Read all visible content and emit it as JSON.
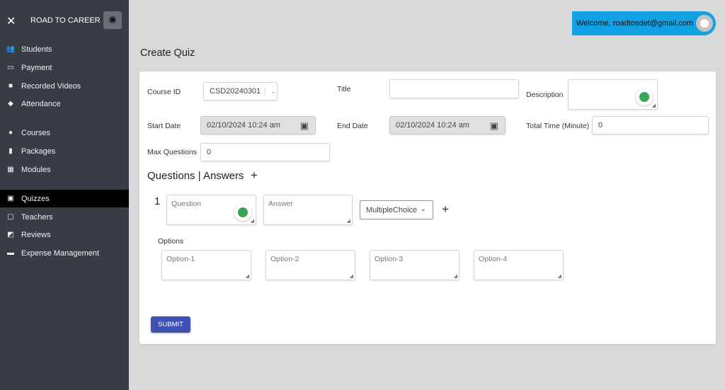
{
  "sidebar": {
    "title": "ROAD TO CAREER",
    "items": [
      {
        "label": "Students",
        "icon": "people-icon"
      },
      {
        "label": "Payment",
        "icon": "credit-card-icon"
      },
      {
        "label": "Recorded Videos",
        "icon": "video-camera-icon"
      },
      {
        "label": "Attendance",
        "icon": "graduation-cap-icon"
      },
      {
        "label": "Courses",
        "icon": "courses-icon"
      },
      {
        "label": "Packages",
        "icon": "shopping-bag-icon"
      },
      {
        "label": "Modules",
        "icon": "grid-icon"
      },
      {
        "label": "Quizzes",
        "icon": "quiz-icon",
        "active": true
      },
      {
        "label": "Teachers",
        "icon": "teacher-icon"
      },
      {
        "label": "Reviews",
        "icon": "review-icon"
      },
      {
        "label": "Expense Management",
        "icon": "money-icon"
      }
    ]
  },
  "header": {
    "welcome": "Welcome, roadtosdet@gmail.com",
    "accent": "#12a1e3"
  },
  "page": {
    "title": "Create Quiz"
  },
  "form": {
    "course_id_label": "Course ID",
    "course_id_value": "CSD20240301",
    "title_label": "Title",
    "title_value": "",
    "description_label": "Description",
    "start_date_label": "Start Date",
    "start_date_value": "02/10/2024 10:24 am",
    "end_date_label": "End Date",
    "end_date_value": "02/10/2024 10:24 am",
    "total_time_label": "Total Time (Minute)",
    "total_time_value": "0",
    "max_questions_label": "Max Questions",
    "max_questions_value": "0",
    "qa_heading": "Questions | Answers",
    "question_number": "1",
    "question_placeholder": "Question",
    "answer_placeholder": "Answer",
    "question_type": "MultipleChoice",
    "options_label": "Options",
    "options": [
      "Option-1",
      "Option-2",
      "Option-3",
      "Option-4"
    ],
    "submit_label": "SUBMIT",
    "submit_color": "#3f51b5"
  }
}
